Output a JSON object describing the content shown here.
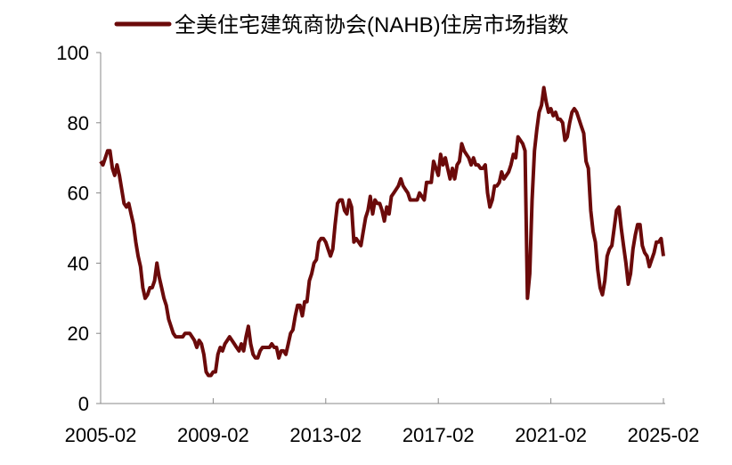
{
  "chart_data": {
    "type": "line",
    "title": "",
    "xlabel": "",
    "ylabel": "",
    "ylim": [
      0,
      100
    ],
    "yticks": [
      "0",
      "20",
      "40",
      "60",
      "80",
      "100"
    ],
    "xtick_labels": [
      "2005-02",
      "2009-02",
      "2013-02",
      "2017-02",
      "2021-02",
      "2025-02"
    ],
    "x_start": "2005-02",
    "x_end": "2025-02",
    "frequency": "monthly",
    "legend_position": "top",
    "grid": false,
    "series": [
      {
        "name": "全美住宅建筑商协会(NAHB)住房市场指数",
        "color": "#6b0a0a",
        "values": [
          69,
          68,
          70,
          72,
          72,
          67,
          65,
          68,
          65,
          61,
          57,
          56,
          57,
          54,
          51,
          46,
          42,
          39,
          33,
          30,
          31,
          33,
          33,
          35,
          40,
          36,
          33,
          30,
          28,
          24,
          22,
          20,
          19,
          19,
          19,
          19,
          20,
          20,
          20,
          19,
          18,
          16,
          18,
          17,
          14,
          9,
          8,
          8,
          9,
          9,
          14,
          16,
          15,
          17,
          18,
          19,
          18,
          17,
          16,
          15,
          17,
          15,
          19,
          22,
          17,
          14,
          13,
          13,
          15,
          16,
          16,
          16,
          16,
          17,
          16,
          16,
          13,
          15,
          15,
          14,
          17,
          20,
          21,
          25,
          28,
          28,
          25,
          29,
          29,
          35,
          37,
          40,
          41,
          46,
          47,
          47,
          46,
          44,
          42,
          44,
          51,
          57,
          58,
          58,
          55,
          54,
          58,
          56,
          46,
          47,
          46,
          45,
          49,
          53,
          55,
          59,
          54,
          58,
          57,
          57,
          55,
          52,
          56,
          54,
          59,
          60,
          61,
          62,
          64,
          62,
          61,
          60,
          58,
          58,
          58,
          58,
          60,
          59,
          58,
          63,
          63,
          63,
          69,
          67,
          65,
          71,
          68,
          70,
          67,
          64,
          67,
          64,
          68,
          69,
          74,
          72,
          71,
          70,
          68,
          70,
          68,
          68,
          67,
          67,
          68,
          60,
          56,
          58,
          62,
          62,
          63,
          66,
          64,
          65,
          66,
          68,
          71,
          70,
          76,
          75,
          74,
          72,
          30,
          37,
          58,
          72,
          78,
          83,
          85,
          90,
          86,
          83,
          84,
          82,
          83,
          81,
          81,
          80,
          75,
          76,
          80,
          83,
          84,
          83,
          81,
          79,
          77,
          69,
          67,
          55,
          49,
          46,
          38,
          33,
          31,
          35,
          42,
          44,
          45,
          50,
          55,
          56,
          50,
          45,
          40,
          34,
          37,
          44,
          48,
          51,
          51,
          45,
          43,
          42,
          39,
          41,
          43,
          46,
          46,
          47,
          42
        ]
      }
    ]
  }
}
